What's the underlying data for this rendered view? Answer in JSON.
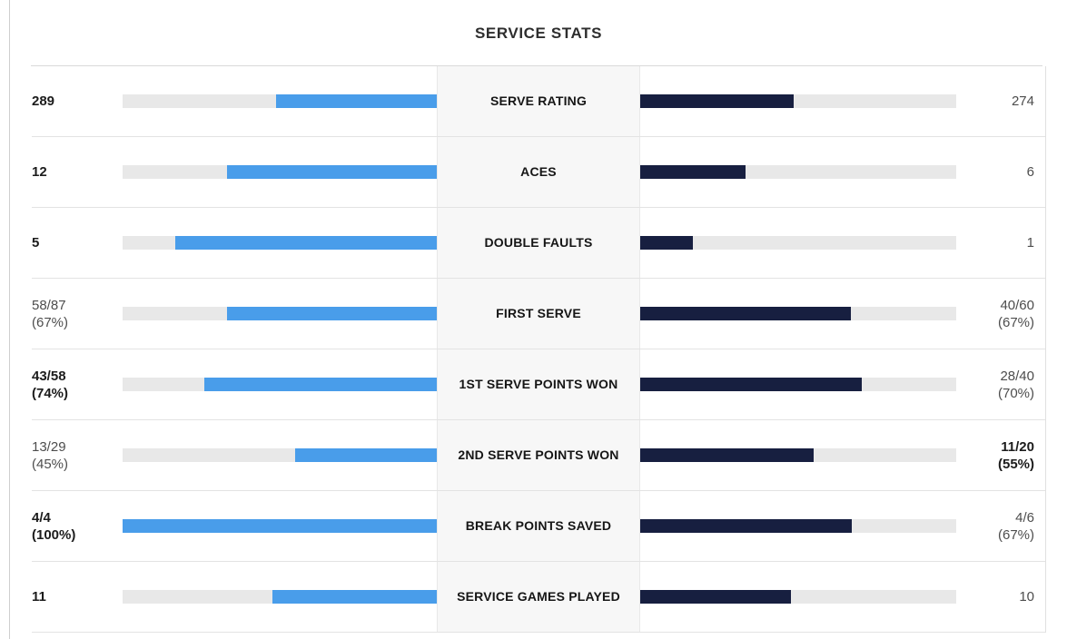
{
  "title": "SERVICE STATS",
  "colors": {
    "left_bar": "#499dea",
    "right_bar": "#171f40",
    "track": "#e8e8e8",
    "label_bg": "#f7f7f7",
    "label_border": "#e8e8e8",
    "divider": "#e3e3e3"
  },
  "rows": [
    {
      "label": "SERVE RATING",
      "left": {
        "main": "289",
        "sub": "",
        "bold": true,
        "pct": 51.3
      },
      "right": {
        "main": "274",
        "sub": "",
        "bold": false,
        "pct": 48.7
      }
    },
    {
      "label": "ACES",
      "left": {
        "main": "12",
        "sub": "",
        "bold": true,
        "pct": 66.7
      },
      "right": {
        "main": "6",
        "sub": "",
        "bold": false,
        "pct": 33.3
      }
    },
    {
      "label": "DOUBLE FAULTS",
      "left": {
        "main": "5",
        "sub": "",
        "bold": true,
        "pct": 83.3
      },
      "right": {
        "main": "1",
        "sub": "",
        "bold": false,
        "pct": 16.7
      }
    },
    {
      "label": "FIRST SERVE",
      "left": {
        "main": "58/87",
        "sub": "(67%)",
        "bold": false,
        "pct": 66.7
      },
      "right": {
        "main": "40/60",
        "sub": "(67%)",
        "bold": false,
        "pct": 66.7
      }
    },
    {
      "label": "1ST SERVE POINTS WON",
      "left": {
        "main": "43/58",
        "sub": "(74%)",
        "bold": true,
        "pct": 74
      },
      "right": {
        "main": "28/40",
        "sub": "(70%)",
        "bold": false,
        "pct": 70
      }
    },
    {
      "label": "2ND SERVE POINTS WON",
      "left": {
        "main": "13/29",
        "sub": "(45%)",
        "bold": false,
        "pct": 45
      },
      "right": {
        "main": "11/20",
        "sub": "(55%)",
        "bold": true,
        "pct": 55
      }
    },
    {
      "label": "BREAK POINTS SAVED",
      "left": {
        "main": "4/4",
        "sub": "(100%)",
        "bold": true,
        "pct": 100
      },
      "right": {
        "main": "4/6",
        "sub": "(67%)",
        "bold": false,
        "pct": 67
      }
    },
    {
      "label": "SERVICE GAMES PLAYED",
      "left": {
        "main": "11",
        "sub": "",
        "bold": true,
        "pct": 52.4
      },
      "right": {
        "main": "10",
        "sub": "",
        "bold": false,
        "pct": 47.6
      }
    }
  ],
  "chart_data": {
    "type": "bar",
    "orientation": "horizontal-paired",
    "title": "SERVICE STATS",
    "categories": [
      "SERVE RATING",
      "ACES",
      "DOUBLE FAULTS",
      "FIRST SERVE",
      "1ST SERVE POINTS WON",
      "2ND SERVE POINTS WON",
      "BREAK POINTS SAVED",
      "SERVICE GAMES PLAYED"
    ],
    "series": [
      {
        "name": "player-left",
        "display_values": [
          "289",
          "12",
          "5",
          "58/87 (67%)",
          "43/58 (74%)",
          "13/29 (45%)",
          "4/4 (100%)",
          "11"
        ],
        "bar_pct": [
          51.3,
          66.7,
          83.3,
          66.7,
          74,
          45,
          100,
          52.4
        ],
        "bold_flags": [
          true,
          true,
          true,
          false,
          true,
          false,
          true,
          true
        ],
        "color": "#499dea",
        "direction": "right-to-left"
      },
      {
        "name": "player-right",
        "display_values": [
          "274",
          "6",
          "1",
          "40/60 (67%)",
          "28/40 (70%)",
          "11/20 (55%)",
          "4/6 (67%)",
          "10"
        ],
        "bar_pct": [
          48.7,
          33.3,
          16.7,
          66.7,
          70,
          55,
          67,
          47.6
        ],
        "bold_flags": [
          false,
          false,
          false,
          false,
          false,
          true,
          false,
          false
        ],
        "color": "#171f40",
        "direction": "left-to-right"
      }
    ],
    "bar_scale_note": "counts normalized by pair sum; fraction stats use their percentage",
    "legend_position": "none",
    "grid": false
  }
}
